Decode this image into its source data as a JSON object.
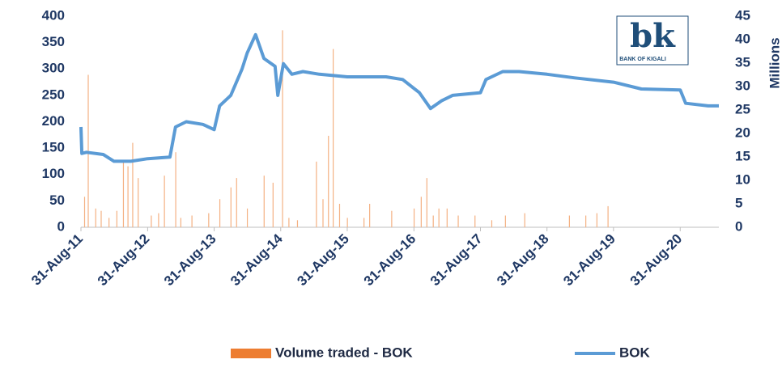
{
  "chart_data": {
    "type": "line_bar",
    "logo": {
      "mark": "bk",
      "name": "BANK OF KIGALI"
    },
    "y2_label": "Millions",
    "xlim": [
      "2011-08-31",
      "2021-03-31"
    ],
    "xticks": [
      {
        "value": "2011-08-31",
        "label": "31-Aug-11"
      },
      {
        "value": "2012-08-31",
        "label": "31-Aug-12"
      },
      {
        "value": "2013-08-31",
        "label": "31-Aug-13"
      },
      {
        "value": "2014-08-31",
        "label": "31-Aug-14"
      },
      {
        "value": "2015-08-31",
        "label": "31-Aug-15"
      },
      {
        "value": "2016-08-31",
        "label": "31-Aug-16"
      },
      {
        "value": "2017-08-31",
        "label": "31-Aug-17"
      },
      {
        "value": "2018-08-31",
        "label": "31-Aug-18"
      },
      {
        "value": "2019-08-31",
        "label": "31-Aug-19"
      },
      {
        "value": "2020-08-31",
        "label": "31-Aug-20"
      }
    ],
    "ylim": [
      0,
      400
    ],
    "yticks": [
      0,
      50,
      100,
      150,
      200,
      250,
      300,
      350,
      400
    ],
    "y2lim": [
      0,
      45
    ],
    "y2ticks": [
      0,
      5,
      10,
      15,
      20,
      25,
      30,
      35,
      40,
      45
    ],
    "series": [
      {
        "name": "Volume traded - BOK",
        "type": "bar",
        "axis": "y2",
        "color": "#f4b183",
        "legend_color": "#ed7d31",
        "x": [
          "2011-09-20",
          "2011-10-10",
          "2011-11-20",
          "2011-12-20",
          "2012-02-01",
          "2012-03-15",
          "2012-04-20",
          "2012-05-15",
          "2012-06-10",
          "2012-07-10",
          "2012-09-20",
          "2012-10-30",
          "2012-12-01",
          "2013-02-01",
          "2013-03-01",
          "2013-05-01",
          "2013-08-01",
          "2013-10-01",
          "2013-12-01",
          "2014-01-01",
          "2014-03-01",
          "2014-06-01",
          "2014-07-20",
          "2014-09-10",
          "2014-10-15",
          "2014-12-01",
          "2015-03-15",
          "2015-04-20",
          "2015-05-20",
          "2015-06-15",
          "2015-07-20",
          "2015-09-01",
          "2015-12-01",
          "2016-01-01",
          "2016-05-01",
          "2016-09-01",
          "2016-10-10",
          "2016-11-10",
          "2016-12-15",
          "2017-01-15",
          "2017-03-01",
          "2017-05-01",
          "2017-08-01",
          "2017-11-01",
          "2018-01-15",
          "2018-05-01",
          "2019-01-01",
          "2019-04-01",
          "2019-06-01",
          "2019-08-01"
        ],
        "values": [
          6.5,
          32.5,
          4,
          3.5,
          2,
          3.5,
          14,
          13,
          18,
          10.5,
          2.5,
          3,
          11,
          16,
          2,
          2.5,
          3,
          6,
          8.5,
          10.5,
          4,
          11,
          9.5,
          42,
          2,
          1.5,
          14,
          6,
          19.5,
          38,
          5,
          2,
          2,
          5,
          3.5,
          4,
          6.5,
          10.5,
          2.5,
          4,
          4,
          2.5,
          2.5,
          1.5,
          2.5,
          3,
          2.5,
          2.5,
          3,
          4.5
        ]
      },
      {
        "name": "BOK",
        "type": "line",
        "axis": "y",
        "color": "#5b9bd5",
        "x": [
          "2011-08-31",
          "2011-09-05",
          "2011-09-30",
          "2011-12-31",
          "2012-02-28",
          "2012-05-31",
          "2012-08-31",
          "2012-12-31",
          "2013-01-31",
          "2013-03-31",
          "2013-06-30",
          "2013-08-31",
          "2013-09-30",
          "2013-11-30",
          "2014-01-31",
          "2014-02-28",
          "2014-04-15",
          "2014-05-31",
          "2014-07-31",
          "2014-08-15",
          "2014-09-15",
          "2014-10-31",
          "2014-12-31",
          "2015-03-31",
          "2015-08-31",
          "2016-03-31",
          "2016-06-30",
          "2016-09-30",
          "2016-11-30",
          "2017-01-31",
          "2017-03-31",
          "2017-08-31",
          "2017-09-30",
          "2017-12-31",
          "2018-03-31",
          "2018-08-31",
          "2019-01-31",
          "2019-08-31",
          "2020-01-31",
          "2020-08-31",
          "2020-09-30",
          "2021-01-31",
          "2021-03-31"
        ],
        "values": [
          190,
          140,
          142,
          138,
          125,
          125,
          130,
          133,
          190,
          200,
          195,
          185,
          230,
          250,
          300,
          330,
          365,
          320,
          305,
          250,
          310,
          290,
          295,
          290,
          285,
          285,
          280,
          255,
          225,
          240,
          250,
          255,
          280,
          295,
          295,
          290,
          283,
          275,
          262,
          260,
          235,
          230,
          230
        ]
      }
    ]
  }
}
